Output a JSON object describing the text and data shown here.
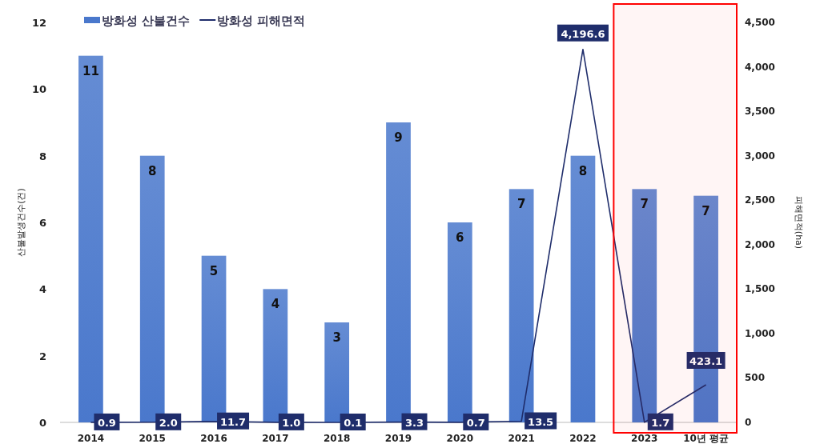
{
  "chart_data": {
    "type": "bar",
    "ylabel": "산불발생건수(건)",
    "y2label": "피해면적(ha)",
    "categories": [
      "2014",
      "2015",
      "2016",
      "2017",
      "2018",
      "2019",
      "2020",
      "2021",
      "2022",
      "2023",
      "10년 평균"
    ],
    "series": [
      {
        "name": "방화성 산불건수",
        "color": "#4a78cc",
        "values": [
          11,
          8,
          5,
          4,
          3,
          9,
          6,
          7,
          8,
          7,
          6.8
        ],
        "value_labels": [
          "11",
          "8",
          "5",
          "4",
          "3",
          "9",
          "6",
          "7",
          "8",
          "7",
          "7"
        ]
      },
      {
        "name": "방화성 피해면적",
        "type": "line",
        "axis": "y2",
        "color": "#1f2d6b",
        "values": [
          0.9,
          2.0,
          11.7,
          1.0,
          0.1,
          3.3,
          0.7,
          13.5,
          4196.6,
          1.7,
          423.1
        ],
        "value_labels": [
          "0.9",
          "2.0",
          "11.7",
          "1.0",
          "0.1",
          "3.3",
          "0.7",
          "13.5",
          "4,196.6",
          "1.7",
          "423.1"
        ]
      }
    ],
    "ylim": [
      0,
      12
    ],
    "yticks": [
      0,
      2,
      4,
      6,
      8,
      10,
      12
    ],
    "y2lim": [
      0,
      4500
    ],
    "y2ticks": [
      {
        "value": 0,
        "label": "0"
      },
      {
        "value": 500,
        "label": "500"
      },
      {
        "value": 1000,
        "label": "1,000"
      },
      {
        "value": 1500,
        "label": "1,500"
      },
      {
        "value": 2000,
        "label": "2,000"
      },
      {
        "value": 2500,
        "label": "2,500"
      },
      {
        "value": 3000,
        "label": "3,000"
      },
      {
        "value": 3500,
        "label": "3,500"
      },
      {
        "value": 4000,
        "label": "4,000"
      },
      {
        "value": 4500,
        "label": "4,500"
      }
    ],
    "bands": [
      {
        "axis": "x",
        "from": "2023",
        "to": "10년 평균",
        "color": "#ff0000"
      }
    ],
    "legend": "top left",
    "marker": "none",
    "line_style": "solid"
  }
}
